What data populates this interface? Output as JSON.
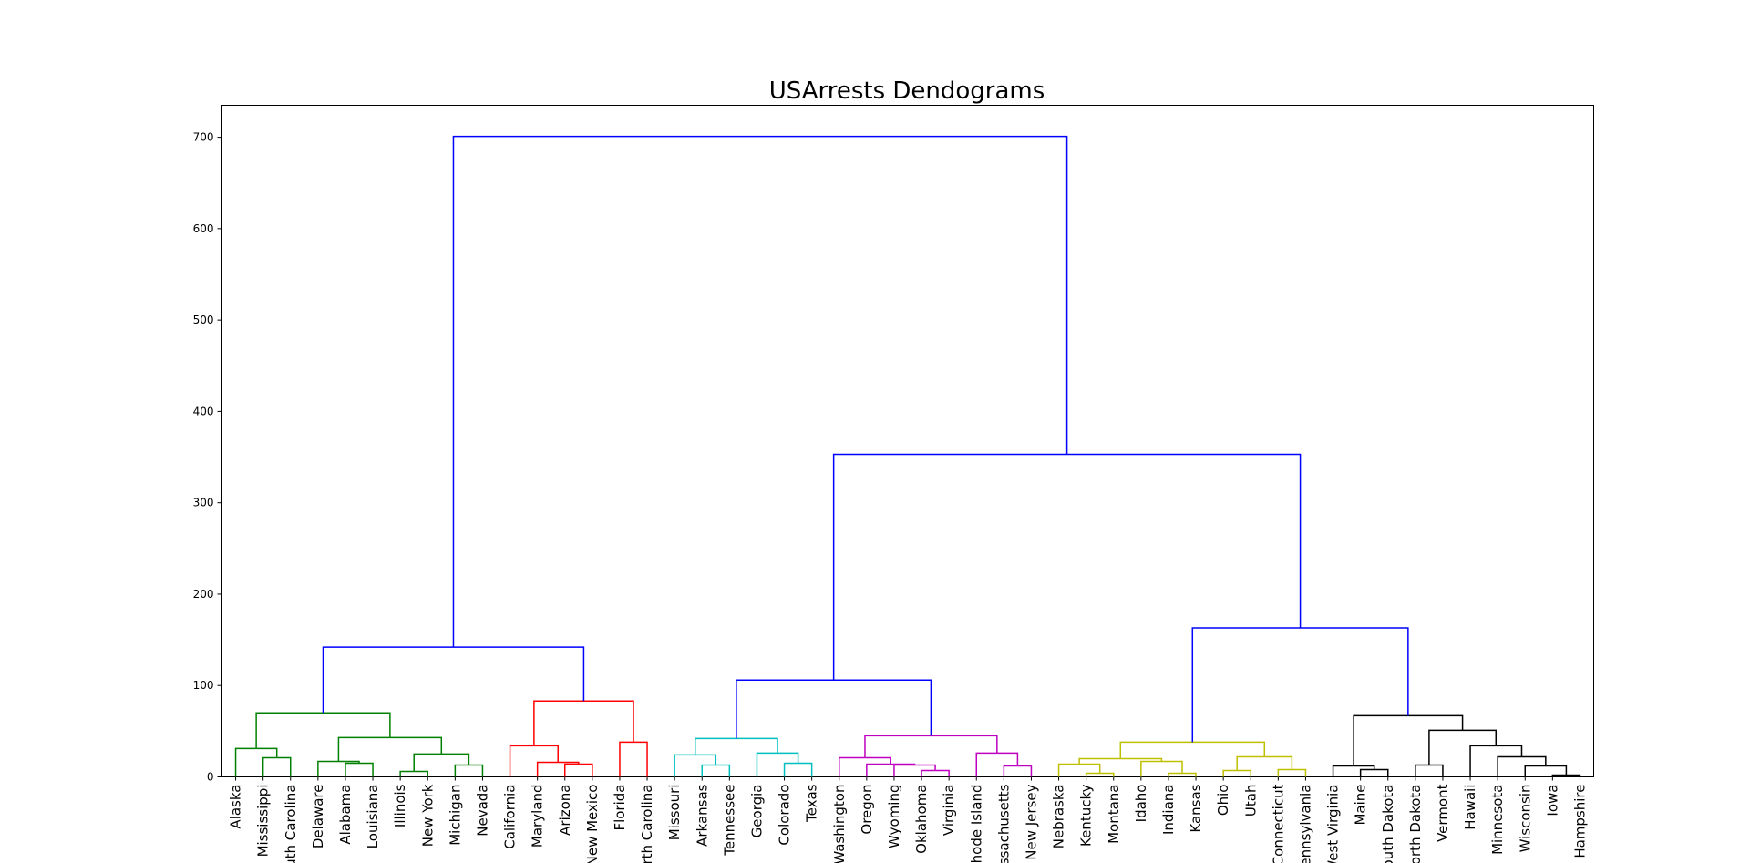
{
  "chart_data": {
    "type": "dendrogram",
    "title": "USArrests Dendograms",
    "xlabel": "",
    "ylabel": "",
    "ylim": [
      0,
      735
    ],
    "yticks": [
      0,
      100,
      200,
      300,
      400,
      500,
      600,
      700
    ],
    "grid": false,
    "legend": "none",
    "leaves": [
      "Alaska",
      "Mississippi",
      "South Carolina",
      "Delaware",
      "Alabama",
      "Louisiana",
      "Illinois",
      "New York",
      "Michigan",
      "Nevada",
      "California",
      "Maryland",
      "Arizona",
      "New Mexico",
      "Florida",
      "North Carolina",
      "Missouri",
      "Arkansas",
      "Tennessee",
      "Georgia",
      "Colorado",
      "Texas",
      "Washington",
      "Oregon",
      "Wyoming",
      "Oklahoma",
      "Virginia",
      "Rhode Island",
      "Massachusetts",
      "New Jersey",
      "Nebraska",
      "Kentucky",
      "Montana",
      "Idaho",
      "Indiana",
      "Kansas",
      "Ohio",
      "Utah",
      "Connecticut",
      "Pennsylvania",
      "West Virginia",
      "Maine",
      "South Dakota",
      "North Dakota",
      "Vermont",
      "Hawaii",
      "Minnesota",
      "Wisconsin",
      "Iowa",
      "New Hampshire"
    ],
    "cluster_colors": {
      "above": "#0000ff",
      "c1": "#008000",
      "c2": "#ff0000",
      "c3": "#00bfbf",
      "c4": "#bf00bf",
      "c5": "#bfbf00",
      "c6": "#000000"
    },
    "merges": [
      {
        "id": "m1",
        "a": 1,
        "b": 2,
        "h": 21,
        "c": "c1"
      },
      {
        "id": "m2",
        "a": 0,
        "b": "m1",
        "h": 31,
        "c": "c1"
      },
      {
        "id": "m3",
        "a": 4,
        "b": 5,
        "h": 15,
        "c": "c1"
      },
      {
        "id": "m4",
        "a": 3,
        "b": "m3",
        "h": 17,
        "c": "c1"
      },
      {
        "id": "m5",
        "a": 6,
        "b": 7,
        "h": 6,
        "c": "c1"
      },
      {
        "id": "m6",
        "a": 8,
        "b": 9,
        "h": 13,
        "c": "c1"
      },
      {
        "id": "m7",
        "a": "m5",
        "b": "m6",
        "h": 25,
        "c": "c1"
      },
      {
        "id": "m8",
        "a": "m4",
        "b": "m7",
        "h": 43,
        "c": "c1"
      },
      {
        "id": "m9",
        "a": "m2",
        "b": "m8",
        "h": 70,
        "c": "c1"
      },
      {
        "id": "m10",
        "a": 12,
        "b": 13,
        "h": 14,
        "c": "c2"
      },
      {
        "id": "m11",
        "a": 11,
        "b": "m10",
        "h": 16,
        "c": "c2"
      },
      {
        "id": "m12",
        "a": 10,
        "b": "m11",
        "h": 34,
        "c": "c2"
      },
      {
        "id": "m13",
        "a": 14,
        "b": 15,
        "h": 38,
        "c": "c2"
      },
      {
        "id": "m14",
        "a": "m12",
        "b": "m13",
        "h": 83,
        "c": "c2"
      },
      {
        "id": "m15",
        "a": "m9",
        "b": "m14",
        "h": 142,
        "c": "above"
      },
      {
        "id": "m16",
        "a": 17,
        "b": 18,
        "h": 13,
        "c": "c3"
      },
      {
        "id": "m17",
        "a": 16,
        "b": "m16",
        "h": 24,
        "c": "c3"
      },
      {
        "id": "m18",
        "a": 20,
        "b": 21,
        "h": 15,
        "c": "c3"
      },
      {
        "id": "m19",
        "a": 19,
        "b": "m18",
        "h": 26,
        "c": "c3"
      },
      {
        "id": "m20",
        "a": "m17",
        "b": "m19",
        "h": 42,
        "c": "c3"
      },
      {
        "id": "m21",
        "a": 25,
        "b": 26,
        "h": 7,
        "c": "c4"
      },
      {
        "id": "m22",
        "a": 24,
        "b": "m21",
        "h": 13,
        "c": "c4"
      },
      {
        "id": "m23",
        "a": 23,
        "b": "m22",
        "h": 14,
        "c": "c4"
      },
      {
        "id": "m24",
        "a": 22,
        "b": "m23",
        "h": 21,
        "c": "c4"
      },
      {
        "id": "m25",
        "a": 28,
        "b": 29,
        "h": 12,
        "c": "c4"
      },
      {
        "id": "m26",
        "a": 27,
        "b": "m25",
        "h": 26,
        "c": "c4"
      },
      {
        "id": "m27",
        "a": "m24",
        "b": "m26",
        "h": 45,
        "c": "c4"
      },
      {
        "id": "m28",
        "a": "m20",
        "b": "m27",
        "h": 106,
        "c": "above"
      },
      {
        "id": "m29",
        "a": 31,
        "b": 32,
        "h": 4,
        "c": "c5"
      },
      {
        "id": "m30",
        "a": 30,
        "b": "m29",
        "h": 14,
        "c": "c5"
      },
      {
        "id": "m31",
        "a": 34,
        "b": 35,
        "h": 4,
        "c": "c5"
      },
      {
        "id": "m32",
        "a": 33,
        "b": "m31",
        "h": 17,
        "c": "c5"
      },
      {
        "id": "m33",
        "a": "m30",
        "b": "m32",
        "h": 20,
        "c": "c5"
      },
      {
        "id": "m34",
        "a": 36,
        "b": 37,
        "h": 7,
        "c": "c5"
      },
      {
        "id": "m35",
        "a": 38,
        "b": 39,
        "h": 8,
        "c": "c5"
      },
      {
        "id": "m36",
        "a": "m34",
        "b": "m35",
        "h": 22,
        "c": "c5"
      },
      {
        "id": "m37",
        "a": "m33",
        "b": "m36",
        "h": 38,
        "c": "c5"
      },
      {
        "id": "m38",
        "a": 41,
        "b": 42,
        "h": 8,
        "c": "c6"
      },
      {
        "id": "m39",
        "a": 40,
        "b": "m38",
        "h": 12,
        "c": "c6"
      },
      {
        "id": "m40",
        "a": 43,
        "b": 44,
        "h": 13,
        "c": "c6"
      },
      {
        "id": "m41",
        "a": 48,
        "b": 49,
        "h": 2,
        "c": "c6"
      },
      {
        "id": "m42",
        "a": 47,
        "b": "m41",
        "h": 12,
        "c": "c6"
      },
      {
        "id": "m43",
        "a": 46,
        "b": "m42",
        "h": 22,
        "c": "c6"
      },
      {
        "id": "m44",
        "a": 45,
        "b": "m43",
        "h": 34,
        "c": "c6"
      },
      {
        "id": "m45",
        "a": "m40",
        "b": "m44",
        "h": 51,
        "c": "c6"
      },
      {
        "id": "m46",
        "a": "m39",
        "b": "m45",
        "h": 67,
        "c": "c6"
      },
      {
        "id": "m47",
        "a": "m37",
        "b": "m46",
        "h": 163,
        "c": "above"
      },
      {
        "id": "m48",
        "a": "m28",
        "b": "m47",
        "h": 353,
        "c": "above"
      },
      {
        "id": "m49",
        "a": "m15",
        "b": "m48",
        "h": 701,
        "c": "above"
      }
    ]
  }
}
